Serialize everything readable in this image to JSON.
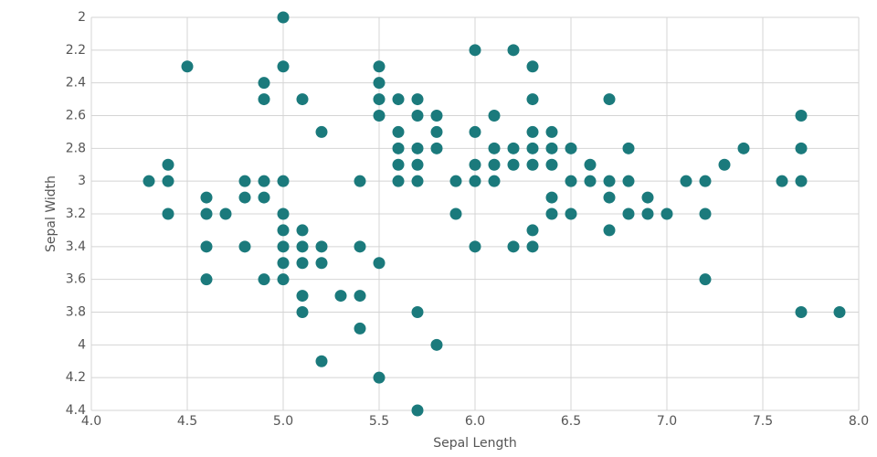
{
  "chart_data": {
    "type": "scatter",
    "x_label": "Sepal Length",
    "y_label": "Sepal Width",
    "color": "#1b7a7c",
    "grid": true,
    "y_reversed": true,
    "xlim": [
      4,
      8
    ],
    "ylim": [
      2,
      4.4
    ],
    "xticks": [
      {
        "value": 4,
        "label": "4.0"
      },
      4.5,
      {
        "value": 5,
        "label": "5.0"
      },
      5.5,
      {
        "value": 6,
        "label": "6.0"
      },
      6.5,
      {
        "value": 7,
        "label": "7.0"
      },
      7.5,
      {
        "value": 8,
        "label": "8.0"
      }
    ],
    "yticks": [
      2,
      2.2,
      2.4,
      2.6,
      2.8,
      3,
      3.2,
      3.4,
      3.6,
      3.8,
      4,
      4.2,
      4.4
    ],
    "x": [
      5.0,
      6.0,
      6.2,
      4.5,
      5.0,
      5.5,
      6.3,
      4.9,
      5.5,
      4.9,
      5.1,
      5.5,
      5.6,
      5.7,
      6.3,
      6.7,
      5.5,
      5.7,
      5.8,
      6.1,
      7.7,
      5.2,
      5.6,
      5.8,
      6.0,
      6.3,
      6.4,
      5.6,
      5.7,
      5.8,
      6.1,
      6.2,
      6.3,
      6.4,
      6.5,
      6.8,
      7.4,
      7.7,
      4.4,
      5.6,
      5.7,
      6.0,
      6.1,
      6.2,
      6.3,
      6.4,
      6.6,
      7.3,
      4.3,
      4.4,
      4.8,
      4.9,
      5.0,
      5.4,
      5.6,
      5.7,
      5.9,
      6.0,
      6.1,
      6.5,
      6.6,
      6.7,
      6.8,
      7.1,
      7.2,
      7.6,
      7.7,
      4.6,
      4.8,
      4.9,
      6.4,
      6.7,
      6.9,
      4.4,
      4.6,
      4.7,
      5.0,
      5.9,
      6.4,
      6.5,
      6.8,
      6.9,
      7.0,
      7.2,
      5.0,
      5.1,
      6.3,
      6.7,
      4.6,
      4.8,
      5.0,
      5.1,
      5.2,
      5.4,
      6.0,
      6.2,
      6.3,
      5.0,
      5.1,
      5.2,
      5.5,
      4.6,
      4.9,
      5.0,
      7.2,
      5.1,
      5.3,
      5.4,
      5.1,
      5.7,
      7.7,
      7.9,
      5.4,
      5.8,
      5.2,
      5.5,
      5.7
    ],
    "y": [
      2.0,
      2.2,
      2.2,
      2.3,
      2.3,
      2.3,
      2.3,
      2.4,
      2.4,
      2.5,
      2.5,
      2.5,
      2.5,
      2.5,
      2.5,
      2.5,
      2.6,
      2.6,
      2.6,
      2.6,
      2.6,
      2.7,
      2.7,
      2.7,
      2.7,
      2.7,
      2.7,
      2.8,
      2.8,
      2.8,
      2.8,
      2.8,
      2.8,
      2.8,
      2.8,
      2.8,
      2.8,
      2.8,
      2.9,
      2.9,
      2.9,
      2.9,
      2.9,
      2.9,
      2.9,
      2.9,
      2.9,
      2.9,
      3.0,
      3.0,
      3.0,
      3.0,
      3.0,
      3.0,
      3.0,
      3.0,
      3.0,
      3.0,
      3.0,
      3.0,
      3.0,
      3.0,
      3.0,
      3.0,
      3.0,
      3.0,
      3.0,
      3.1,
      3.1,
      3.1,
      3.1,
      3.1,
      3.1,
      3.2,
      3.2,
      3.2,
      3.2,
      3.2,
      3.2,
      3.2,
      3.2,
      3.2,
      3.2,
      3.2,
      3.3,
      3.3,
      3.3,
      3.3,
      3.4,
      3.4,
      3.4,
      3.4,
      3.4,
      3.4,
      3.4,
      3.4,
      3.4,
      3.5,
      3.5,
      3.5,
      3.5,
      3.6,
      3.6,
      3.6,
      3.6,
      3.7,
      3.7,
      3.7,
      3.8,
      3.8,
      3.8,
      3.8,
      3.9,
      4.0,
      4.1,
      4.2,
      4.4
    ]
  }
}
